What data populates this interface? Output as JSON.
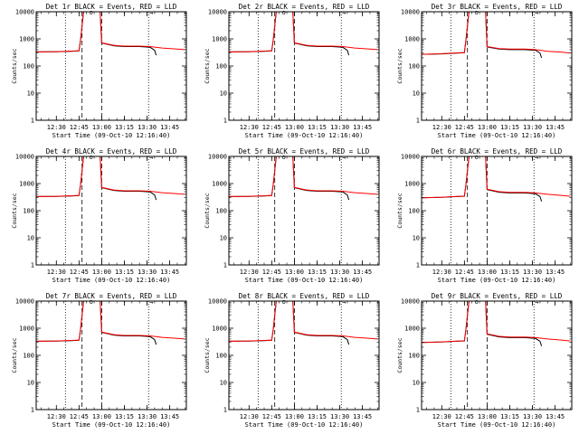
{
  "chart_data": [
    {
      "type": "line",
      "title": "Det 1r BLACK = Events, RED = LLD",
      "xlabel": "Start Time (09-Oct-10 12:16:40)",
      "ylabel": "Counts/sec",
      "yscale": "log",
      "ylim": [
        1,
        10000
      ],
      "xticks": [
        "12:30",
        "12:45",
        "13:00",
        "13:15",
        "13:30",
        "13:45"
      ],
      "yticks": [
        "1",
        "10",
        "100",
        "1000",
        "10000"
      ],
      "markers": [
        "o",
        "¬"
      ],
      "series": [
        {
          "name": "BLACK = Events",
          "color": "#000000",
          "x": [
            "12:16:40",
            "12:30",
            "12:40",
            "12:45",
            "12:46",
            "12:48",
            "12:56",
            "12:59",
            "13:00",
            "13:08",
            "13:15",
            "13:25",
            "13:32",
            "13:35",
            "13:36"
          ],
          "y": [
            330,
            335,
            350,
            360,
            900,
            10000,
            10000,
            10000,
            700,
            560,
            520,
            520,
            490,
            380,
            250
          ]
        },
        {
          "name": "RED = LLD",
          "color": "#ff0000",
          "x": [
            "12:16:40",
            "12:30",
            "12:40",
            "12:45",
            "12:46",
            "12:48",
            "12:56",
            "12:59",
            "13:00",
            "13:08",
            "13:15",
            "13:25",
            "13:32",
            "13:40",
            "13:50",
            "13:55"
          ],
          "y": [
            330,
            340,
            355,
            365,
            900,
            10000,
            10000,
            10000,
            720,
            580,
            540,
            540,
            520,
            460,
            420,
            400
          ]
        }
      ]
    },
    {
      "type": "line",
      "title": "Det 2r BLACK = Events, RED = LLD",
      "xlabel": "Start Time (09-Oct-10 12:16:40)",
      "ylabel": "Counts/sec",
      "yscale": "log",
      "ylim": [
        1,
        10000
      ],
      "xticks": [
        "12:30",
        "12:45",
        "13:00",
        "13:15",
        "13:30",
        "13:45"
      ],
      "yticks": [
        "1",
        "10",
        "100",
        "1000",
        "10000"
      ],
      "markers": [
        "o",
        "¬"
      ],
      "series": [
        {
          "name": "BLACK = Events",
          "color": "#000000",
          "x": [
            "12:16:40",
            "12:30",
            "12:40",
            "12:45",
            "12:46",
            "12:48",
            "12:56",
            "12:59",
            "13:00",
            "13:08",
            "13:15",
            "13:25",
            "13:32",
            "13:35",
            "13:36"
          ],
          "y": [
            330,
            335,
            350,
            360,
            900,
            10000,
            10000,
            10000,
            700,
            560,
            520,
            520,
            490,
            380,
            250
          ]
        },
        {
          "name": "RED = LLD",
          "color": "#ff0000",
          "x": [
            "12:16:40",
            "12:30",
            "12:40",
            "12:45",
            "12:46",
            "12:48",
            "12:56",
            "12:59",
            "13:00",
            "13:08",
            "13:15",
            "13:25",
            "13:32",
            "13:40",
            "13:50",
            "13:55"
          ],
          "y": [
            330,
            340,
            355,
            365,
            900,
            10000,
            10000,
            10000,
            720,
            580,
            540,
            540,
            520,
            460,
            420,
            400
          ]
        }
      ]
    },
    {
      "type": "line",
      "title": "Det 3r BLACK = Events, RED = LLD",
      "xlabel": "Start Time (09-Oct-10 12:16:40)",
      "ylabel": "Counts/sec",
      "yscale": "log",
      "ylim": [
        1,
        10000
      ],
      "xticks": [
        "12:30",
        "12:45",
        "13:00",
        "13:15",
        "13:30",
        "13:45"
      ],
      "yticks": [
        "1",
        "10",
        "100",
        "1000",
        "10000"
      ],
      "markers": [
        "o",
        "¬"
      ],
      "series": [
        {
          "name": "BLACK = Events",
          "color": "#000000",
          "x": [
            "12:16:40",
            "12:30",
            "12:40",
            "12:45",
            "12:46",
            "12:48",
            "12:56",
            "12:59",
            "13:00",
            "13:08",
            "13:15",
            "13:25",
            "13:32",
            "13:35",
            "13:36"
          ],
          "y": [
            270,
            280,
            300,
            310,
            900,
            10000,
            10000,
            10000,
            500,
            420,
            400,
            400,
            380,
            300,
            200
          ]
        },
        {
          "name": "RED = LLD",
          "color": "#ff0000",
          "x": [
            "12:16:40",
            "12:30",
            "12:40",
            "12:45",
            "12:46",
            "12:48",
            "12:56",
            "12:59",
            "13:00",
            "13:08",
            "13:15",
            "13:25",
            "13:32",
            "13:40",
            "13:50",
            "13:55"
          ],
          "y": [
            270,
            285,
            305,
            315,
            900,
            10000,
            10000,
            10000,
            520,
            440,
            420,
            420,
            400,
            350,
            320,
            300
          ]
        }
      ]
    },
    {
      "type": "line",
      "title": "Det 4r BLACK = Events, RED = LLD",
      "xlabel": "Start Time (09-Oct-10 12:16:40)",
      "ylabel": "Counts/sec",
      "yscale": "log",
      "ylim": [
        1,
        10000
      ],
      "xticks": [
        "12:30",
        "12:45",
        "13:00",
        "13:15",
        "13:30",
        "13:45"
      ],
      "yticks": [
        "1",
        "10",
        "100",
        "1000",
        "10000"
      ],
      "markers": [
        "o",
        "¬"
      ],
      "series": [
        {
          "name": "BLACK = Events",
          "color": "#000000",
          "x": [
            "12:16:40",
            "12:30",
            "12:40",
            "12:45",
            "12:46",
            "12:48",
            "12:56",
            "12:59",
            "13:00",
            "13:08",
            "13:15",
            "13:25",
            "13:32",
            "13:35",
            "13:36"
          ],
          "y": [
            330,
            335,
            350,
            360,
            900,
            10000,
            10000,
            10000,
            700,
            560,
            520,
            520,
            490,
            380,
            250
          ]
        },
        {
          "name": "RED = LLD",
          "color": "#ff0000",
          "x": [
            "12:16:40",
            "12:30",
            "12:40",
            "12:45",
            "12:46",
            "12:48",
            "12:56",
            "12:59",
            "13:00",
            "13:08",
            "13:15",
            "13:25",
            "13:32",
            "13:40",
            "13:50",
            "13:55"
          ],
          "y": [
            330,
            340,
            355,
            365,
            900,
            10000,
            10000,
            10000,
            720,
            580,
            540,
            540,
            520,
            460,
            420,
            400
          ]
        }
      ]
    },
    {
      "type": "line",
      "title": "Det 5r BLACK = Events, RED = LLD",
      "xlabel": "Start Time (09-Oct-10 12:16:40)",
      "ylabel": "Counts/sec",
      "yscale": "log",
      "ylim": [
        1,
        10000
      ],
      "xticks": [
        "12:30",
        "12:45",
        "13:00",
        "13:15",
        "13:30",
        "13:45"
      ],
      "yticks": [
        "1",
        "10",
        "100",
        "1000",
        "10000"
      ],
      "markers": [
        "o",
        "¬"
      ],
      "series": [
        {
          "name": "BLACK = Events",
          "color": "#000000",
          "x": [
            "12:16:40",
            "12:30",
            "12:40",
            "12:45",
            "12:46",
            "12:48",
            "12:56",
            "12:59",
            "13:00",
            "13:08",
            "13:15",
            "13:25",
            "13:32",
            "13:35",
            "13:36"
          ],
          "y": [
            330,
            335,
            350,
            360,
            900,
            10000,
            10000,
            10000,
            700,
            560,
            520,
            520,
            490,
            380,
            250
          ]
        },
        {
          "name": "RED = LLD",
          "color": "#ff0000",
          "x": [
            "12:16:40",
            "12:30",
            "12:40",
            "12:45",
            "12:46",
            "12:48",
            "12:56",
            "12:59",
            "13:00",
            "13:08",
            "13:15",
            "13:25",
            "13:32",
            "13:40",
            "13:50",
            "13:55"
          ],
          "y": [
            330,
            340,
            355,
            365,
            900,
            10000,
            10000,
            10000,
            720,
            580,
            540,
            540,
            520,
            460,
            420,
            400
          ]
        }
      ]
    },
    {
      "type": "line",
      "title": "Det 6r BLACK = Events, RED = LLD",
      "xlabel": "Start Time (09-Oct-10 12:16:40)",
      "ylabel": "Counts/sec",
      "yscale": "log",
      "ylim": [
        1,
        10000
      ],
      "xticks": [
        "12:30",
        "12:45",
        "13:00",
        "13:15",
        "13:30",
        "13:45"
      ],
      "yticks": [
        "1",
        "10",
        "100",
        "1000",
        "10000"
      ],
      "markers": [
        "o",
        "¬"
      ],
      "series": [
        {
          "name": "BLACK = Events",
          "color": "#000000",
          "x": [
            "12:16:40",
            "12:30",
            "12:40",
            "12:45",
            "12:46",
            "12:48",
            "12:56",
            "12:59",
            "13:00",
            "13:08",
            "13:15",
            "13:25",
            "13:32",
            "13:35",
            "13:36"
          ],
          "y": [
            300,
            310,
            330,
            340,
            900,
            10000,
            10000,
            10000,
            600,
            480,
            450,
            450,
            420,
            330,
            220
          ]
        },
        {
          "name": "RED = LLD",
          "color": "#ff0000",
          "x": [
            "12:16:40",
            "12:30",
            "12:40",
            "12:45",
            "12:46",
            "12:48",
            "12:56",
            "12:59",
            "13:00",
            "13:08",
            "13:15",
            "13:25",
            "13:32",
            "13:40",
            "13:50",
            "13:55"
          ],
          "y": [
            300,
            315,
            335,
            345,
            900,
            10000,
            10000,
            10000,
            620,
            500,
            470,
            470,
            450,
            400,
            360,
            340
          ]
        }
      ]
    },
    {
      "type": "line",
      "title": "Det 7r BLACK = Events, RED = LLD",
      "xlabel": "Start Time (09-Oct-10 12:16:40)",
      "ylabel": "Counts/sec",
      "yscale": "log",
      "ylim": [
        1,
        10000
      ],
      "xticks": [
        "12:30",
        "12:45",
        "13:00",
        "13:15",
        "13:30",
        "13:45"
      ],
      "yticks": [
        "1",
        "10",
        "100",
        "1000",
        "10000"
      ],
      "markers": [
        "o",
        "¬"
      ],
      "series": [
        {
          "name": "BLACK = Events",
          "color": "#000000",
          "x": [
            "12:16:40",
            "12:30",
            "12:40",
            "12:45",
            "12:46",
            "12:48",
            "12:56",
            "12:59",
            "13:00",
            "13:08",
            "13:15",
            "13:25",
            "13:32",
            "13:35",
            "13:36"
          ],
          "y": [
            330,
            335,
            350,
            360,
            900,
            10000,
            10000,
            10000,
            700,
            560,
            520,
            520,
            490,
            380,
            250
          ]
        },
        {
          "name": "RED = LLD",
          "color": "#ff0000",
          "x": [
            "12:16:40",
            "12:30",
            "12:40",
            "12:45",
            "12:46",
            "12:48",
            "12:56",
            "12:59",
            "13:00",
            "13:08",
            "13:15",
            "13:25",
            "13:32",
            "13:40",
            "13:50",
            "13:55"
          ],
          "y": [
            330,
            340,
            355,
            365,
            900,
            10000,
            10000,
            10000,
            720,
            580,
            540,
            540,
            520,
            460,
            420,
            400
          ]
        }
      ]
    },
    {
      "type": "line",
      "title": "Det 8r BLACK = Events, RED = LLD",
      "xlabel": "Start Time (09-Oct-10 12:16:40)",
      "ylabel": "Counts/sec",
      "yscale": "log",
      "ylim": [
        1,
        10000
      ],
      "xticks": [
        "12:30",
        "12:45",
        "13:00",
        "13:15",
        "13:30",
        "13:45"
      ],
      "yticks": [
        "1",
        "10",
        "100",
        "1000",
        "10000"
      ],
      "markers": [
        "o",
        "¬"
      ],
      "series": [
        {
          "name": "BLACK = Events",
          "color": "#000000",
          "x": [
            "12:16:40",
            "12:30",
            "12:40",
            "12:45",
            "12:46",
            "12:48",
            "12:56",
            "12:59",
            "13:00",
            "13:08",
            "13:15",
            "13:25",
            "13:32",
            "13:35",
            "13:36"
          ],
          "y": [
            330,
            335,
            350,
            360,
            900,
            10000,
            10000,
            10000,
            700,
            560,
            520,
            520,
            490,
            380,
            250
          ]
        },
        {
          "name": "RED = LLD",
          "color": "#ff0000",
          "x": [
            "12:16:40",
            "12:30",
            "12:40",
            "12:45",
            "12:46",
            "12:48",
            "12:56",
            "12:59",
            "13:00",
            "13:08",
            "13:15",
            "13:25",
            "13:32",
            "13:40",
            "13:50",
            "13:55"
          ],
          "y": [
            330,
            340,
            355,
            365,
            900,
            10000,
            10000,
            10000,
            720,
            580,
            540,
            540,
            520,
            460,
            420,
            400
          ]
        }
      ]
    },
    {
      "type": "line",
      "title": "Det 9r BLACK = Events, RED = LLD",
      "xlabel": "Start Time (09-Oct-10 12:16:40)",
      "ylabel": "Counts/sec",
      "yscale": "log",
      "ylim": [
        1,
        10000
      ],
      "xticks": [
        "12:30",
        "12:45",
        "13:00",
        "13:15",
        "13:30",
        "13:45"
      ],
      "yticks": [
        "1",
        "10",
        "100",
        "1000",
        "10000"
      ],
      "markers": [
        "o",
        "¬"
      ],
      "series": [
        {
          "name": "BLACK = Events",
          "color": "#000000",
          "x": [
            "12:16:40",
            "12:30",
            "12:40",
            "12:45",
            "12:46",
            "12:48",
            "12:56",
            "12:59",
            "13:00",
            "13:08",
            "13:15",
            "13:25",
            "13:32",
            "13:35",
            "13:36"
          ],
          "y": [
            300,
            310,
            330,
            340,
            900,
            10000,
            10000,
            10000,
            600,
            480,
            450,
            450,
            420,
            330,
            220
          ]
        },
        {
          "name": "RED = LLD",
          "color": "#ff0000",
          "x": [
            "12:16:40",
            "12:30",
            "12:40",
            "12:45",
            "12:46",
            "12:48",
            "12:56",
            "12:59",
            "13:00",
            "13:08",
            "13:15",
            "13:25",
            "13:32",
            "13:40",
            "13:50",
            "13:55"
          ],
          "y": [
            300,
            315,
            335,
            345,
            900,
            10000,
            10000,
            10000,
            620,
            500,
            470,
            470,
            450,
            400,
            360,
            340
          ]
        }
      ]
    }
  ]
}
